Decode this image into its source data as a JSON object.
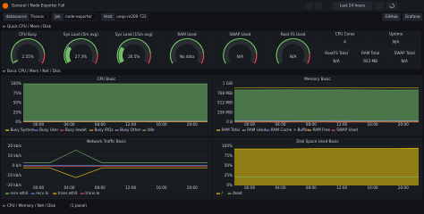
{
  "topbar": {
    "breadcrumb": "General / Node Exporter Full",
    "time_range": "Last 24 hours"
  },
  "variables": [
    {
      "label": "datasource",
      "value": "Thanos"
    },
    {
      "label": "Job",
      "value": "node-exporter"
    },
    {
      "label": "Host",
      "value": "unqo-m200-722"
    }
  ],
  "links": [
    "GitHub",
    "Grafana"
  ],
  "rows": [
    {
      "title": "Quick CPU / Mem / Disk"
    },
    {
      "title": "Basic CPU / Mem / Net / Disk"
    },
    {
      "title": "CPU / Memory / Net / Disk",
      "note": "(1 panel)"
    }
  ],
  "gauges": [
    {
      "title": "CPU Busy",
      "value": 2.55,
      "value_label": "2.55%"
    },
    {
      "title": "Sys Load (5m avg)",
      "value": 27.3,
      "value_label": "27.3%"
    },
    {
      "title": "Sys Load (15m avg)",
      "value": 26.5,
      "value_label": "26.5%"
    },
    {
      "title": "RAM Used",
      "value": null,
      "value_label": "No data"
    },
    {
      "title": "SWAP Used",
      "value": null,
      "value_label": "N/A"
    },
    {
      "title": "Root FS Used",
      "value": null,
      "value_label": "N/A"
    }
  ],
  "stats": [
    {
      "title": "CPU Cores",
      "value": "4"
    },
    {
      "title": "Uptime",
      "value": "N/A"
    },
    {
      "title": "RootFS Total",
      "value": "N/A"
    },
    {
      "title": "RAM Total",
      "value": "923 MB"
    },
    {
      "title": "SWAP Total",
      "value": "N/A"
    }
  ],
  "panels": [
    {
      "title": "CPU Basic",
      "stack": true,
      "ylim": [
        0,
        100
      ],
      "yticks": [
        {
          "value": 0,
          "label": "0%"
        },
        {
          "value": 25,
          "label": "25%"
        },
        {
          "value": 50,
          "label": "50%"
        },
        {
          "value": 75,
          "label": "75%"
        },
        {
          "value": 100,
          "label": "100%"
        }
      ],
      "xticks": [
        "00:00",
        "04:00",
        "08:00",
        "12:00",
        "16:00",
        "20:00"
      ],
      "series": [
        {
          "name": "Busy System",
          "color": "#f2cc0c",
          "fill": true,
          "values": [
            1.2,
            1.1,
            1.3,
            1.2,
            1.2,
            1.1,
            1.2,
            1.3
          ]
        },
        {
          "name": "Busy User",
          "color": "#5794f2",
          "fill": true,
          "values": [
            1.3,
            1.4,
            1.2,
            1.3,
            1.4,
            1.3,
            1.2,
            1.3
          ]
        },
        {
          "name": "Busy Iowait",
          "color": "#f2495c",
          "fill": true,
          "values": [
            0.1,
            0.1,
            0.1,
            0.1,
            0.1,
            0.1,
            0.1,
            0.1
          ]
        },
        {
          "name": "Busy IRQs",
          "color": "#ff9830",
          "fill": true,
          "values": [
            0.1,
            0.1,
            0.1,
            0.1,
            0.1,
            0.1,
            0.1,
            0.1
          ]
        },
        {
          "name": "Busy Other",
          "color": "#b877d9",
          "fill": true,
          "values": [
            0.1,
            0.1,
            0.1,
            0.1,
            0.1,
            0.1,
            0.1,
            0.1
          ]
        },
        {
          "name": "Idle",
          "color": "#73bf69",
          "fill": true,
          "values": [
            97.2,
            97.2,
            97.2,
            97.2,
            97.1,
            97.3,
            97.3,
            97.1
          ]
        }
      ]
    },
    {
      "title": "Memory Basic",
      "stack": false,
      "ylim": [
        0,
        1024
      ],
      "yticks": [
        {
          "value": 0,
          "label": "0 B"
        },
        {
          "value": 256,
          "label": "256 MiB"
        },
        {
          "value": 512,
          "label": "512 MiB"
        },
        {
          "value": 768,
          "label": "768 MiB"
        },
        {
          "value": 1024,
          "label": "1 GiB"
        }
      ],
      "xticks": [
        "00:00",
        "04:00",
        "08:00",
        "12:00",
        "16:00",
        "20:00"
      ],
      "series": [
        {
          "name": "RAM Total",
          "color": "#f2cc0c",
          "fill": false,
          "values": [
            923,
            923,
            923,
            923,
            923,
            923,
            923,
            923
          ]
        },
        {
          "name": "RAM Used",
          "color": "#73bf69",
          "fill": true,
          "values": [
            860,
            858,
            862,
            859,
            861,
            860,
            857,
            860
          ]
        },
        {
          "name": "RAM Cache + Buffer",
          "color": "#5794f2",
          "fill": false,
          "values": [
            40,
            42,
            41,
            40,
            43,
            41,
            42,
            40
          ]
        },
        {
          "name": "RAM Free",
          "color": "#ff9830",
          "fill": false,
          "values": [
            23,
            23,
            20,
            24,
            19,
            22,
            24,
            23
          ]
        },
        {
          "name": "SWAP Used",
          "color": "#f2495c",
          "fill": false,
          "values": [
            0,
            0,
            0,
            0,
            0,
            0,
            0,
            0
          ]
        }
      ]
    },
    {
      "title": "Network Traffic Basic",
      "stack": false,
      "ylim": [
        -20,
        20
      ],
      "yticks": [
        {
          "value": -20,
          "label": "-20 kb/s"
        },
        {
          "value": -10,
          "label": "-10 kb/s"
        },
        {
          "value": 0,
          "label": "0 b/s"
        },
        {
          "value": 10,
          "label": "10 kb/s"
        },
        {
          "value": 20,
          "label": "20 kb/s"
        }
      ],
      "xticks": [
        "00:00",
        "04:00",
        "08:00",
        "12:00",
        "16:00",
        "20:00"
      ],
      "series": [
        {
          "name": "recv eth0",
          "color": "#73bf69",
          "fill": false,
          "values": [
            3,
            3,
            16,
            3,
            3,
            3,
            3,
            3
          ]
        },
        {
          "name": "recv lo",
          "color": "#5794f2",
          "fill": false,
          "values": [
            0.5,
            0.5,
            0.5,
            0.5,
            0.5,
            0.5,
            0.5,
            0.5
          ]
        },
        {
          "name": "trans eth0",
          "color": "#f2cc0c",
          "fill": false,
          "values": [
            -2,
            -2,
            -12,
            -2,
            -2,
            -2,
            -2,
            -2
          ]
        },
        {
          "name": "trans lo",
          "color": "#f2495c",
          "fill": false,
          "values": [
            -0.5,
            -0.5,
            -0.5,
            -0.5,
            -0.5,
            -0.5,
            -0.5,
            -0.5
          ]
        }
      ]
    },
    {
      "title": "Disk Space Used Basic",
      "stack": false,
      "ylim": [
        0,
        100
      ],
      "yticks": [
        {
          "value": 0,
          "label": "0%"
        },
        {
          "value": 25,
          "label": "25%"
        },
        {
          "value": 50,
          "label": "50%"
        },
        {
          "value": 75,
          "label": "75%"
        },
        {
          "value": 100,
          "label": "100%"
        }
      ],
      "xticks": [
        "00:00",
        "04:00",
        "08:00",
        "12:00",
        "16:00",
        "20:00"
      ],
      "series": [
        {
          "name": "/",
          "color": "#f2cc0c",
          "fill": true,
          "values": [
            93,
            93,
            93,
            94,
            94,
            94,
            94,
            95
          ]
        },
        {
          "name": "/boot",
          "color": "#73bf69",
          "fill": false,
          "values": [
            22,
            22,
            22,
            22,
            22,
            22,
            22,
            22
          ]
        }
      ]
    }
  ]
}
